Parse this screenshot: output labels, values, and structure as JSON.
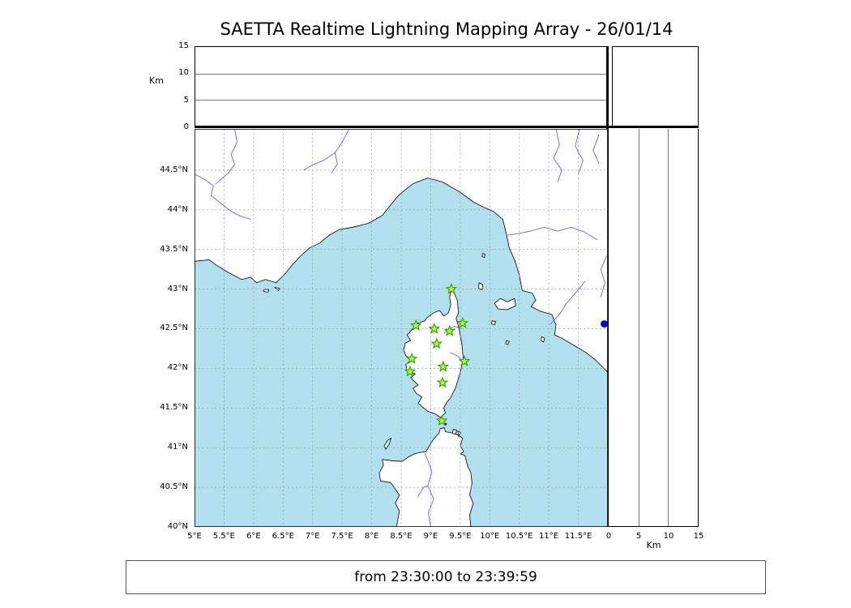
{
  "title": "SAETTA Realtime Lightning Mapping Array - 26/01/14",
  "footer": {
    "text": "from 23:30:00 to 23:39:59"
  },
  "colors": {
    "sea": "#b2e0ee",
    "land": "#ffffff",
    "coast": "#000000",
    "grid": "#999999",
    "river": "#5555cc",
    "station_fill": "#b4f04e",
    "station_edge": "#2f9e00",
    "edge_dot": "#0000bb"
  },
  "alt_axis": {
    "label": "Km",
    "ticks": [
      0,
      5,
      10,
      15
    ],
    "grid_ticks": [
      5,
      10
    ],
    "max": 15
  },
  "map": {
    "lon_min": 5.0,
    "lon_max": 12.0,
    "lat_min": 40.0,
    "lat_max": 45.02,
    "grid_step": 0.5,
    "lon_tick_values": [
      5,
      5.5,
      6,
      6.5,
      7,
      7.5,
      8,
      8.5,
      9,
      9.5,
      10,
      10.5,
      11,
      11.5
    ],
    "lon_tick_labels": [
      "5°E",
      "5.5°E",
      "6°E",
      "6.5°E",
      "7°E",
      "7.5°E",
      "8°E",
      "8.5°E",
      "9°E",
      "9.5°E",
      "10°E",
      "10.5°E",
      "11°E",
      "11.5°E"
    ],
    "lat_tick_values": [
      40,
      40.5,
      41,
      41.5,
      42,
      42.5,
      43,
      43.5,
      44,
      44.5
    ],
    "lat_tick_labels": [
      "40°N",
      "40.5°N",
      "41°N",
      "41.5°N",
      "42°N",
      "42.5°N",
      "43°N",
      "43.5°N",
      "44°N",
      "44.5°N"
    ],
    "geo": {
      "mainland": [
        [
          5.0,
          43.35
        ],
        [
          5.25,
          43.37
        ],
        [
          5.37,
          43.3
        ],
        [
          5.55,
          43.22
        ],
        [
          5.8,
          43.12
        ],
        [
          5.95,
          43.15
        ],
        [
          6.05,
          43.08
        ],
        [
          6.2,
          43.12
        ],
        [
          6.38,
          43.08
        ],
        [
          6.52,
          43.18
        ],
        [
          6.65,
          43.3
        ],
        [
          6.8,
          43.42
        ],
        [
          6.95,
          43.52
        ],
        [
          7.12,
          43.58
        ],
        [
          7.28,
          43.68
        ],
        [
          7.45,
          43.75
        ],
        [
          7.68,
          43.78
        ],
        [
          7.95,
          43.83
        ],
        [
          8.18,
          43.93
        ],
        [
          8.45,
          44.18
        ],
        [
          8.7,
          44.33
        ],
        [
          8.95,
          44.4
        ],
        [
          9.2,
          44.35
        ],
        [
          9.5,
          44.22
        ],
        [
          9.72,
          44.1
        ],
        [
          9.9,
          44.03
        ],
        [
          10.06,
          43.98
        ],
        [
          10.22,
          43.88
        ],
        [
          10.28,
          43.7
        ],
        [
          10.33,
          43.52
        ],
        [
          10.43,
          43.35
        ],
        [
          10.5,
          43.18
        ],
        [
          10.55,
          42.98
        ],
        [
          10.72,
          42.95
        ],
        [
          10.78,
          42.86
        ],
        [
          10.7,
          42.78
        ],
        [
          10.86,
          42.72
        ],
        [
          11.05,
          42.68
        ],
        [
          11.12,
          42.55
        ],
        [
          11.1,
          42.42
        ],
        [
          11.22,
          42.38
        ],
        [
          11.45,
          42.28
        ],
        [
          11.63,
          42.2
        ],
        [
          11.8,
          42.1
        ],
        [
          12.0,
          41.95
        ],
        [
          12.0,
          45.02
        ],
        [
          5.0,
          45.02
        ]
      ],
      "corsica": [
        [
          9.36,
          43.01
        ],
        [
          9.45,
          42.86
        ],
        [
          9.47,
          42.7
        ],
        [
          9.43,
          42.63
        ],
        [
          9.48,
          42.5
        ],
        [
          9.53,
          42.3
        ],
        [
          9.55,
          42.12
        ],
        [
          9.5,
          41.95
        ],
        [
          9.42,
          41.75
        ],
        [
          9.33,
          41.62
        ],
        [
          9.28,
          41.58
        ],
        [
          9.22,
          41.5
        ],
        [
          9.25,
          41.44
        ],
        [
          9.16,
          41.38
        ],
        [
          9.09,
          41.42
        ],
        [
          8.95,
          41.46
        ],
        [
          8.88,
          41.5
        ],
        [
          8.79,
          41.56
        ],
        [
          8.85,
          41.64
        ],
        [
          8.76,
          41.68
        ],
        [
          8.7,
          41.75
        ],
        [
          8.79,
          41.79
        ],
        [
          8.66,
          41.88
        ],
        [
          8.74,
          41.93
        ],
        [
          8.6,
          41.97
        ],
        [
          8.58,
          42.05
        ],
        [
          8.68,
          42.11
        ],
        [
          8.58,
          42.16
        ],
        [
          8.54,
          42.23
        ],
        [
          8.57,
          42.32
        ],
        [
          8.66,
          42.35
        ],
        [
          8.6,
          42.42
        ],
        [
          8.72,
          42.52
        ],
        [
          8.78,
          42.57
        ],
        [
          8.9,
          42.6
        ],
        [
          8.94,
          42.64
        ],
        [
          9.05,
          42.7
        ],
        [
          9.15,
          42.73
        ],
        [
          9.22,
          42.66
        ],
        [
          9.3,
          42.7
        ],
        [
          9.34,
          42.8
        ],
        [
          9.32,
          42.9
        ]
      ],
      "sardinia": [
        [
          8.42,
          40.0
        ],
        [
          8.47,
          40.2
        ],
        [
          8.4,
          40.3
        ],
        [
          8.47,
          40.4
        ],
        [
          8.38,
          40.5
        ],
        [
          8.32,
          40.56
        ],
        [
          8.15,
          40.58
        ],
        [
          8.13,
          40.68
        ],
        [
          8.2,
          40.78
        ],
        [
          8.18,
          40.85
        ],
        [
          8.3,
          40.84
        ],
        [
          8.4,
          40.83
        ],
        [
          8.52,
          40.83
        ],
        [
          8.62,
          40.88
        ],
        [
          8.72,
          40.92
        ],
        [
          8.82,
          40.94
        ],
        [
          8.92,
          40.95
        ],
        [
          9.0,
          41.05
        ],
        [
          9.06,
          41.12
        ],
        [
          9.14,
          41.18
        ],
        [
          9.16,
          41.24
        ],
        [
          9.23,
          41.25
        ],
        [
          9.25,
          41.2
        ],
        [
          9.33,
          41.19
        ],
        [
          9.4,
          41.18
        ],
        [
          9.48,
          41.15
        ],
        [
          9.54,
          41.12
        ],
        [
          9.5,
          41.02
        ],
        [
          9.56,
          40.95
        ],
        [
          9.5,
          40.92
        ],
        [
          9.58,
          40.9
        ],
        [
          9.62,
          40.78
        ],
        [
          9.68,
          40.68
        ],
        [
          9.7,
          40.55
        ],
        [
          9.66,
          40.4
        ],
        [
          9.72,
          40.3
        ],
        [
          9.66,
          40.15
        ],
        [
          9.68,
          40.0
        ]
      ],
      "islands": [
        [
          [
            10.08,
            42.82
          ],
          [
            10.18,
            42.88
          ],
          [
            10.3,
            42.84
          ],
          [
            10.42,
            42.88
          ],
          [
            10.44,
            42.79
          ],
          [
            10.3,
            42.74
          ],
          [
            10.14,
            42.75
          ]
        ],
        [
          [
            9.82,
            43.08
          ],
          [
            9.88,
            43.06
          ],
          [
            9.87,
            42.99
          ],
          [
            9.81,
            43.01
          ]
        ],
        [
          [
            9.88,
            43.45
          ],
          [
            9.92,
            43.44
          ],
          [
            9.91,
            43.4
          ],
          [
            9.87,
            43.41
          ]
        ],
        [
          [
            10.04,
            42.6
          ],
          [
            10.1,
            42.59
          ],
          [
            10.08,
            42.55
          ],
          [
            10.03,
            42.56
          ]
        ],
        [
          [
            10.28,
            42.35
          ],
          [
            10.33,
            42.34
          ],
          [
            10.31,
            42.3
          ],
          [
            10.27,
            42.31
          ]
        ],
        [
          [
            10.88,
            42.4
          ],
          [
            10.93,
            42.38
          ],
          [
            10.91,
            42.33
          ],
          [
            10.87,
            42.35
          ]
        ],
        [
          [
            8.21,
            41.02
          ],
          [
            8.27,
            41.09
          ],
          [
            8.33,
            41.12
          ],
          [
            8.3,
            41.05
          ],
          [
            8.24,
            40.98
          ]
        ],
        [
          [
            9.38,
            41.23
          ],
          [
            9.44,
            41.22
          ],
          [
            9.42,
            41.17
          ],
          [
            9.37,
            41.18
          ]
        ],
        [
          [
            9.46,
            41.21
          ],
          [
            9.51,
            41.19
          ],
          [
            9.47,
            41.14
          ]
        ],
        [
          [
            9.24,
            41.31
          ],
          [
            9.27,
            41.3
          ],
          [
            9.25,
            41.28
          ]
        ],
        [
          [
            6.18,
            43.0
          ],
          [
            6.26,
            42.99
          ],
          [
            6.24,
            42.96
          ],
          [
            6.17,
            42.97
          ]
        ],
        [
          [
            6.36,
            43.02
          ],
          [
            6.44,
            43.01
          ],
          [
            6.42,
            42.98
          ]
        ]
      ],
      "rivers": [
        [
          [
            5.0,
            44.45
          ],
          [
            5.18,
            44.38
          ],
          [
            5.32,
            44.3
          ],
          [
            5.28,
            44.18
          ],
          [
            5.45,
            44.08
          ],
          [
            5.62,
            43.98
          ],
          [
            5.78,
            43.92
          ],
          [
            5.95,
            43.88
          ]
        ],
        [
          [
            5.68,
            45.02
          ],
          [
            5.72,
            44.85
          ],
          [
            5.62,
            44.7
          ],
          [
            5.68,
            44.57
          ],
          [
            5.58,
            44.47
          ],
          [
            5.35,
            44.32
          ]
        ],
        [
          [
            7.62,
            45.02
          ],
          [
            7.5,
            44.85
          ],
          [
            7.38,
            44.72
          ],
          [
            7.18,
            44.62
          ],
          [
            6.98,
            44.56
          ],
          [
            6.85,
            44.5
          ]
        ],
        [
          [
            7.38,
            44.72
          ],
          [
            7.42,
            44.58
          ],
          [
            7.32,
            44.46
          ]
        ],
        [
          [
            11.12,
            45.02
          ],
          [
            11.18,
            44.82
          ],
          [
            11.08,
            44.65
          ],
          [
            11.22,
            44.5
          ],
          [
            11.15,
            44.35
          ]
        ],
        [
          [
            11.52,
            45.02
          ],
          [
            11.45,
            44.8
          ],
          [
            11.58,
            44.62
          ],
          [
            11.5,
            44.45
          ]
        ],
        [
          [
            11.85,
            44.95
          ],
          [
            11.75,
            44.75
          ],
          [
            11.85,
            44.58
          ]
        ],
        [
          [
            11.82,
            43.62
          ],
          [
            11.6,
            43.72
          ],
          [
            11.38,
            43.78
          ],
          [
            11.15,
            43.73
          ],
          [
            10.92,
            43.78
          ],
          [
            10.68,
            43.73
          ],
          [
            10.48,
            43.7
          ],
          [
            10.3,
            43.68
          ]
        ],
        [
          [
            11.62,
            43.1
          ],
          [
            11.45,
            42.95
          ],
          [
            11.3,
            42.82
          ],
          [
            11.18,
            42.68
          ],
          [
            11.02,
            42.55
          ]
        ],
        [
          [
            11.98,
            43.42
          ],
          [
            11.88,
            43.25
          ],
          [
            11.95,
            43.08
          ],
          [
            11.88,
            42.9
          ]
        ],
        [
          [
            9.0,
            40.0
          ],
          [
            8.96,
            40.18
          ],
          [
            9.05,
            40.35
          ],
          [
            8.95,
            40.52
          ],
          [
            9.02,
            40.7
          ],
          [
            8.93,
            40.88
          ],
          [
            8.9,
            40.93
          ]
        ],
        [
          [
            8.78,
            40.38
          ],
          [
            8.88,
            40.5
          ],
          [
            8.95,
            40.52
          ]
        ],
        [
          [
            9.52,
            42.5
          ],
          [
            9.4,
            42.53
          ],
          [
            9.3,
            42.49
          ],
          [
            9.22,
            42.44
          ]
        ],
        [
          [
            9.54,
            42.1
          ],
          [
            9.44,
            42.16
          ],
          [
            9.33,
            42.2
          ]
        ]
      ]
    }
  },
  "chart_data": [
    {
      "type": "scatter",
      "panel": "altitude_vs_longitude",
      "ylabel": "Km",
      "xlim": [
        5,
        12
      ],
      "ylim": [
        0,
        15
      ],
      "yticks": [
        0,
        5,
        10,
        15
      ],
      "grid_lines_y_km": [
        5,
        10
      ],
      "points": []
    },
    {
      "type": "scatter",
      "panel": "map_lon_lat",
      "xlim": [
        5,
        12
      ],
      "ylim": [
        40,
        45
      ],
      "xticks": [
        5,
        5.5,
        6,
        6.5,
        7,
        7.5,
        8,
        8.5,
        9,
        9.5,
        10,
        10.5,
        11,
        11.5
      ],
      "yticks": [
        40,
        40.5,
        41,
        41.5,
        42,
        42.5,
        43,
        43.5,
        44,
        44.5
      ],
      "grid": "dashed 0.5 deg",
      "series": [
        {
          "name": "lma_stations",
          "marker": "star",
          "color": "#b4f04e",
          "points_lon_lat": [
            [
              9.35,
              43.0
            ],
            [
              8.75,
              42.54
            ],
            [
              9.06,
              42.5
            ],
            [
              9.32,
              42.47
            ],
            [
              9.54,
              42.57
            ],
            [
              9.1,
              42.31
            ],
            [
              8.68,
              42.12
            ],
            [
              8.65,
              41.96
            ],
            [
              9.57,
              42.09
            ],
            [
              9.21,
              42.02
            ],
            [
              9.2,
              41.82
            ],
            [
              9.19,
              41.34
            ]
          ]
        },
        {
          "name": "lightning_source",
          "marker": "circle",
          "color": "#0000bb",
          "points_lon_lat": [
            [
              11.94,
              42.56
            ]
          ]
        }
      ]
    },
    {
      "type": "histogram",
      "panel": "top_right_altitude_histogram",
      "points": []
    },
    {
      "type": "scatter",
      "panel": "altitude_vs_latitude",
      "xlabel": "Km",
      "xlim": [
        0,
        15
      ],
      "xticks": [
        0,
        5,
        10,
        15
      ],
      "ylim": [
        40,
        45
      ],
      "grid_lines_x_km": [
        5,
        10
      ],
      "points": []
    }
  ]
}
